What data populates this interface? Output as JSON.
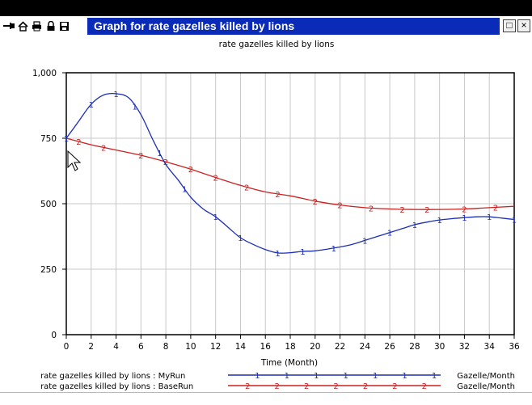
{
  "window": {
    "title": "Graph for rate gazelles killed by lions",
    "restore_glyph": "□",
    "close_glyph": "×",
    "toolbar_icons": [
      "pin-icon",
      "home-icon",
      "print-icon",
      "lock-icon",
      "save-icon"
    ]
  },
  "colors": {
    "title_bar": "#0a2ab8",
    "series_myrun": "#1c2fb4",
    "series_baserun": "#cc2020",
    "grid": "#c8c8c8"
  },
  "cursor": "arrow-pointer-icon",
  "chart_data": {
    "type": "line",
    "title": "rate gazelles killed by lions",
    "xlabel": "Time (Month)",
    "ylabel": "",
    "xlim": [
      0,
      36
    ],
    "ylim": [
      0,
      1000
    ],
    "x_ticks": [
      "0",
      "2",
      "4",
      "6",
      "8",
      "10",
      "12",
      "14",
      "16",
      "18",
      "20",
      "22",
      "24",
      "26",
      "28",
      "30",
      "32",
      "34",
      "36"
    ],
    "x_tick_values": [
      0,
      2,
      4,
      6,
      8,
      10,
      12,
      14,
      16,
      18,
      20,
      22,
      24,
      26,
      28,
      30,
      32,
      34,
      36
    ],
    "y_ticks": [
      "0",
      "250",
      "500",
      "750",
      "1,000"
    ],
    "y_tick_values": [
      0,
      250,
      500,
      750,
      1000
    ],
    "grid": true,
    "legend_position": "bottom",
    "series": [
      {
        "name": "rate gazelles killed by lions : MyRun",
        "marker": "1",
        "units": "Gazelle/Month",
        "color": "#1c2fb4",
        "x": [
          0,
          1,
          2,
          3,
          4,
          5,
          6,
          7,
          8,
          9,
          10,
          11,
          12,
          13,
          14,
          15,
          16,
          17,
          18,
          19,
          20,
          21,
          22,
          23,
          24,
          25,
          26,
          27,
          28,
          29,
          30,
          31,
          32,
          33,
          34,
          35,
          36
        ],
        "y": [
          750,
          815,
          880,
          915,
          920,
          905,
          840,
          740,
          650,
          590,
          525,
          480,
          450,
          410,
          370,
          345,
          325,
          312,
          313,
          318,
          320,
          327,
          335,
          345,
          360,
          375,
          390,
          405,
          420,
          430,
          438,
          443,
          447,
          450,
          450,
          445,
          440
        ]
      },
      {
        "name": "rate gazelles killed by lions : BaseRun",
        "marker": "2",
        "units": "Gazelle/Month",
        "color": "#cc2020",
        "x": [
          0,
          2,
          4,
          6,
          8,
          10,
          12,
          14,
          16,
          18,
          20,
          22,
          24,
          26,
          28,
          30,
          32,
          34,
          36
        ],
        "y": [
          750,
          725,
          705,
          685,
          660,
          632,
          600,
          570,
          545,
          530,
          510,
          495,
          485,
          480,
          478,
          478,
          480,
          485,
          490
        ]
      }
    ],
    "legend": {
      "marker_positions_myrun": [
        6,
        12,
        18,
        24,
        30,
        36,
        42
      ],
      "marker_positions_baserun": [
        4,
        10,
        16,
        22,
        28,
        34,
        40
      ]
    }
  }
}
